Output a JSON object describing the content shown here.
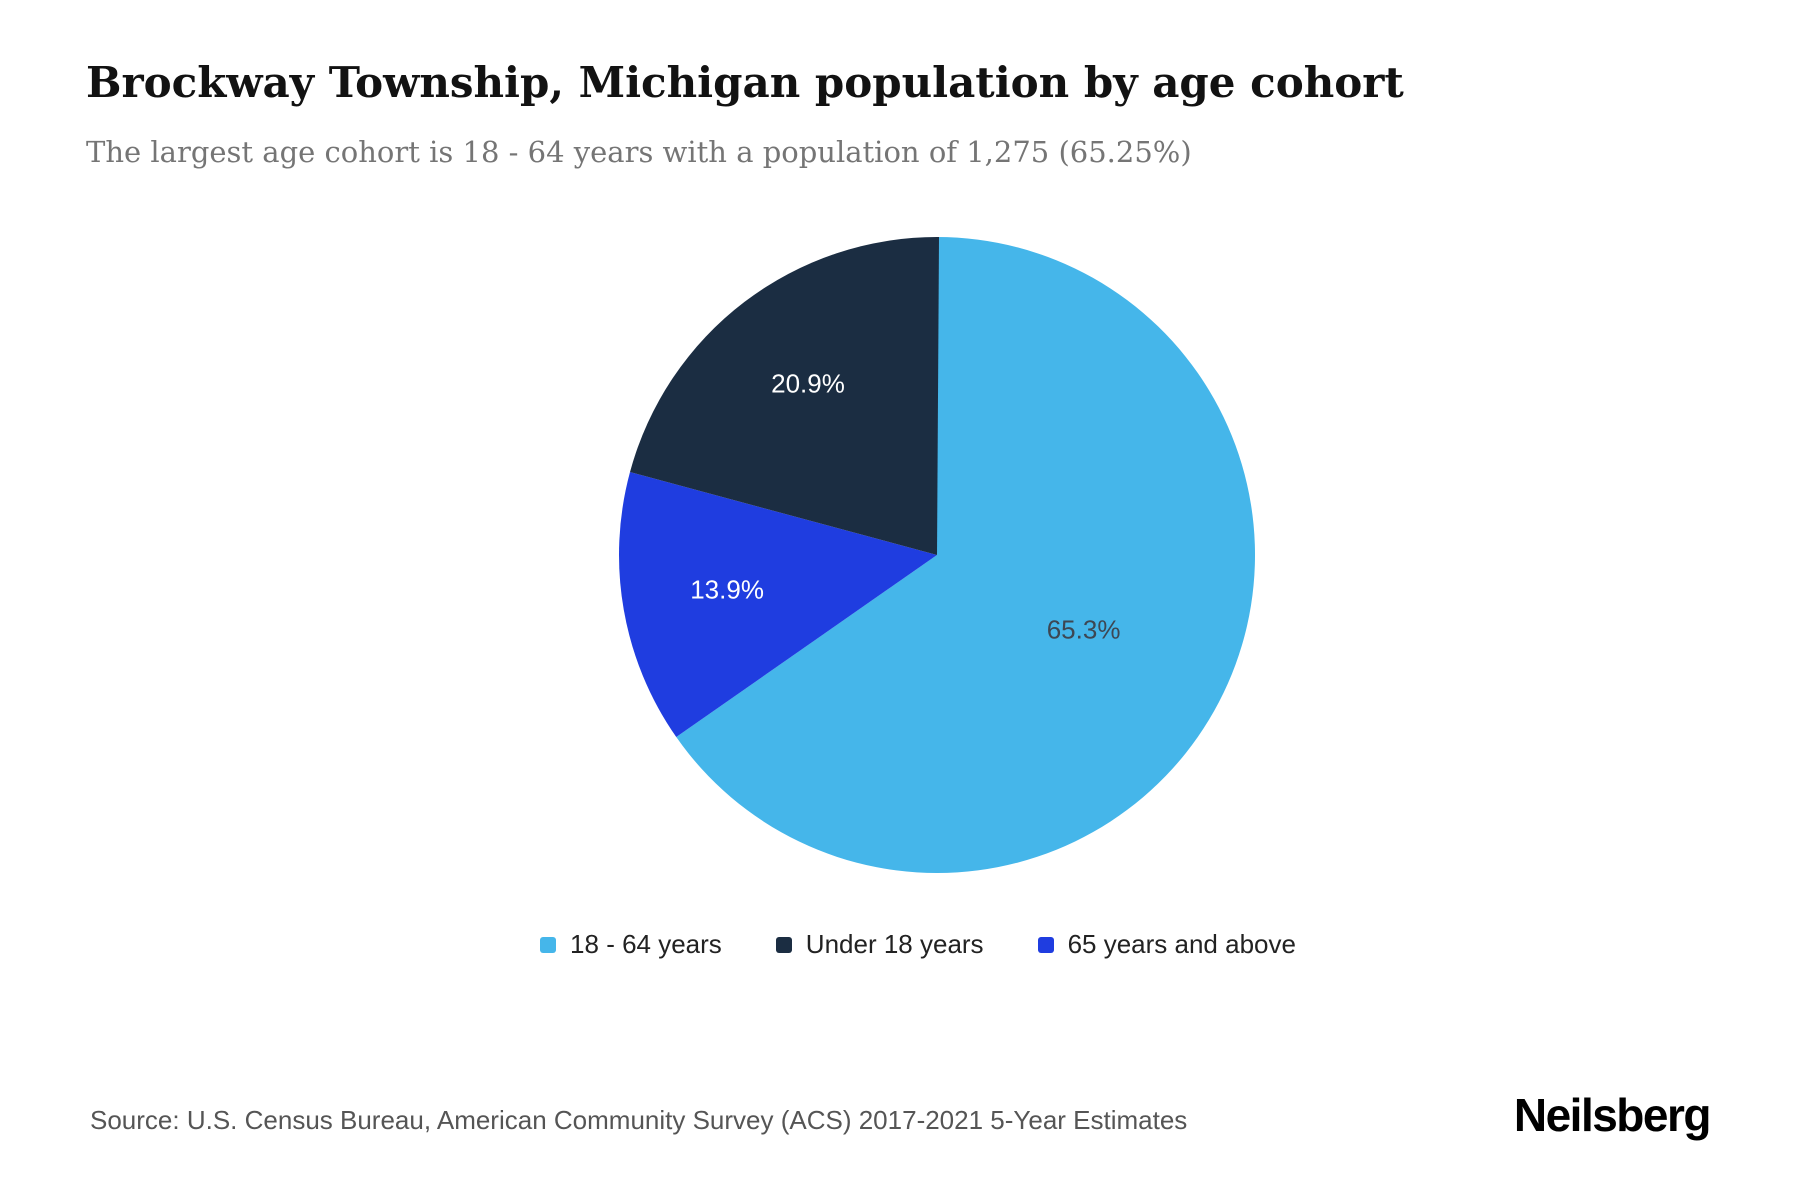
{
  "header": {
    "title": "Brockway Township, Michigan population by age cohort",
    "subtitle": "The largest age cohort is 18 - 64 years with a population of 1,275 (65.25%)"
  },
  "chart_data": {
    "type": "pie",
    "title": "Brockway Township, Michigan population by age cohort",
    "start_angle_deg": 0,
    "direction": "clockwise",
    "legend_position": "bottom",
    "slices": [
      {
        "label": "18 - 64 years",
        "value": 65.3,
        "display": "65.3%",
        "color": "#45b6ea",
        "text_color": "#3d4753"
      },
      {
        "label": "65 years and above",
        "value": 13.9,
        "display": "13.9%",
        "color": "#1f3de0",
        "text_color": "#ffffff"
      },
      {
        "label": "Under 18 years",
        "value": 20.9,
        "display": "20.9%",
        "color": "#1b2d42",
        "text_color": "#ffffff"
      }
    ]
  },
  "legend": {
    "items": [
      {
        "label": "18 - 64 years",
        "color": "#45b6ea"
      },
      {
        "label": "Under 18 years",
        "color": "#1b2d42"
      },
      {
        "label": "65 years and above",
        "color": "#1f3de0"
      }
    ]
  },
  "footer": {
    "source": "Source: U.S. Census Bureau, American Community Survey (ACS) 2017-2021 5-Year Estimates",
    "logo": "Neilsberg"
  }
}
